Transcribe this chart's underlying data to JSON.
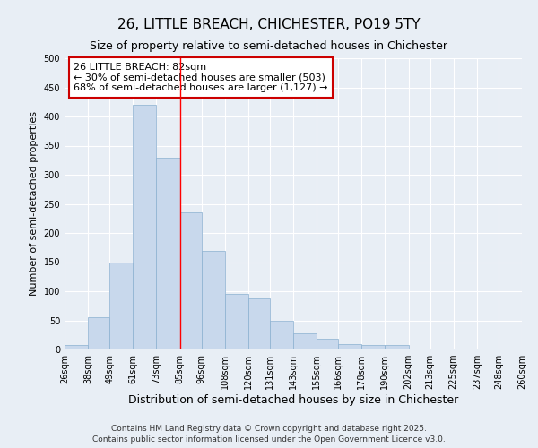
{
  "title": "26, LITTLE BREACH, CHICHESTER, PO19 5TY",
  "subtitle": "Size of property relative to semi-detached houses in Chichester",
  "xlabel": "Distribution of semi-detached houses by size in Chichester",
  "ylabel": "Number of semi-detached properties",
  "bar_color": "#c8d8ec",
  "bar_edge_color": "#8ab0d0",
  "background_color": "#e8eef5",
  "grid_color": "#ffffff",
  "bin_labels": [
    "26sqm",
    "38sqm",
    "49sqm",
    "61sqm",
    "73sqm",
    "85sqm",
    "96sqm",
    "108sqm",
    "120sqm",
    "131sqm",
    "143sqm",
    "155sqm",
    "166sqm",
    "178sqm",
    "190sqm",
    "202sqm",
    "213sqm",
    "225sqm",
    "237sqm",
    "248sqm",
    "260sqm"
  ],
  "bin_edges": [
    26,
    38,
    49,
    61,
    73,
    85,
    96,
    108,
    120,
    131,
    143,
    155,
    166,
    178,
    190,
    202,
    213,
    225,
    237,
    248,
    260
  ],
  "bar_heights": [
    8,
    55,
    150,
    420,
    330,
    235,
    170,
    95,
    88,
    50,
    28,
    18,
    10,
    8,
    7,
    2,
    0,
    0,
    2,
    0
  ],
  "red_line_x": 85,
  "annotation_title": "26 LITTLE BREACH: 82sqm",
  "annotation_line1": "← 30% of semi-detached houses are smaller (503)",
  "annotation_line2": "68% of semi-detached houses are larger (1,127) →",
  "annotation_box_color": "#ffffff",
  "annotation_box_edge": "#cc0000",
  "footer_line1": "Contains HM Land Registry data © Crown copyright and database right 2025.",
  "footer_line2": "Contains public sector information licensed under the Open Government Licence v3.0.",
  "ylim": [
    0,
    500
  ],
  "title_fontsize": 11,
  "subtitle_fontsize": 9,
  "xlabel_fontsize": 9,
  "ylabel_fontsize": 8,
  "tick_fontsize": 7,
  "annotation_fontsize": 8,
  "footer_fontsize": 6.5
}
